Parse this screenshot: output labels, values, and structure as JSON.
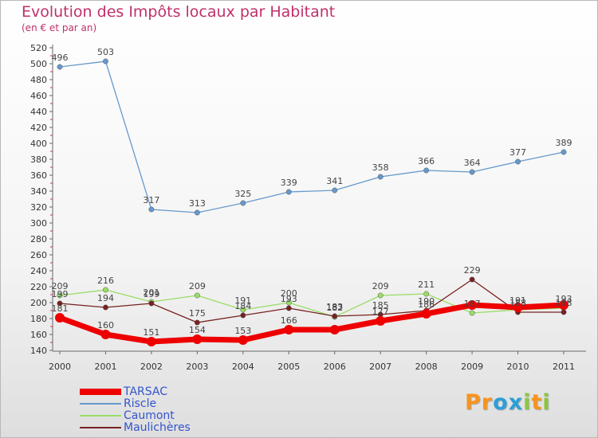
{
  "title": "Evolution des Impôts locaux par Habitant",
  "subtitle": "(en € et par an)",
  "logo": {
    "text": "Proxiti",
    "letters": [
      {
        "ch": "P",
        "color": "#f7941d"
      },
      {
        "ch": "r",
        "color": "#f7941d"
      },
      {
        "ch": "o",
        "color": "#2a9fd8"
      },
      {
        "ch": "x",
        "color": "#2a9fd8"
      },
      {
        "ch": "i",
        "color": "#8cc63f"
      },
      {
        "ch": "t",
        "color": "#f7941d"
      },
      {
        "ch": "i",
        "color": "#8cc63f"
      }
    ]
  },
  "chart_data": {
    "type": "line",
    "title": "Evolution des Impôts locaux par Habitant",
    "subtitle": "(en € et par an)",
    "xlabel": "",
    "ylabel": "",
    "x": [
      "2000",
      "2001",
      "2002",
      "2003",
      "2004",
      "2005",
      "2006",
      "2007",
      "2008",
      "2009",
      "2010",
      "2011"
    ],
    "ylim": [
      140,
      520
    ],
    "yticks": [
      "140",
      "160",
      "180",
      "200",
      "220",
      "240",
      "260",
      "280",
      "300",
      "320",
      "340",
      "360",
      "380",
      "400",
      "420",
      "440",
      "460",
      "480",
      "500",
      "520"
    ],
    "grid": false,
    "legend_position": "bottom-left",
    "series": [
      {
        "name": "TARSAC",
        "color": "#ee0000",
        "width": "thick",
        "values": [
          181,
          160,
          151,
          154,
          153,
          166,
          166,
          177,
          186,
          197,
          194,
          197
        ],
        "labels": [
          "181",
          "160",
          "151",
          "154",
          "153",
          "166",
          "",
          "177",
          "186",
          "",
          "",
          ""
        ]
      },
      {
        "name": "Riscle",
        "color": "#6699cc",
        "width": "thin",
        "values": [
          496,
          503,
          317,
          313,
          325,
          339,
          341,
          358,
          366,
          364,
          377,
          389
        ],
        "labels": [
          "496",
          "503",
          "317",
          "313",
          "325",
          "339",
          "341",
          "358",
          "366",
          "364",
          "377",
          "389"
        ]
      },
      {
        "name": "Caumont",
        "color": "#99dd66",
        "width": "thin",
        "values": [
          209,
          216,
          201,
          209,
          191,
          200,
          182,
          209,
          211,
          187,
          191,
          193
        ],
        "labels": [
          "209",
          "216",
          "201",
          "209",
          "191",
          "200",
          "182",
          "209",
          "211",
          "187",
          "191",
          "193"
        ]
      },
      {
        "name": "Maulichères",
        "color": "#772222",
        "width": "thin",
        "values": [
          199,
          194,
          199,
          175,
          184,
          193,
          183,
          185,
          190,
          229,
          188,
          188
        ],
        "labels": [
          "199",
          "194",
          "199",
          "175",
          "184",
          "193",
          "183",
          "185",
          "190",
          "229",
          "188",
          "188"
        ]
      }
    ]
  }
}
